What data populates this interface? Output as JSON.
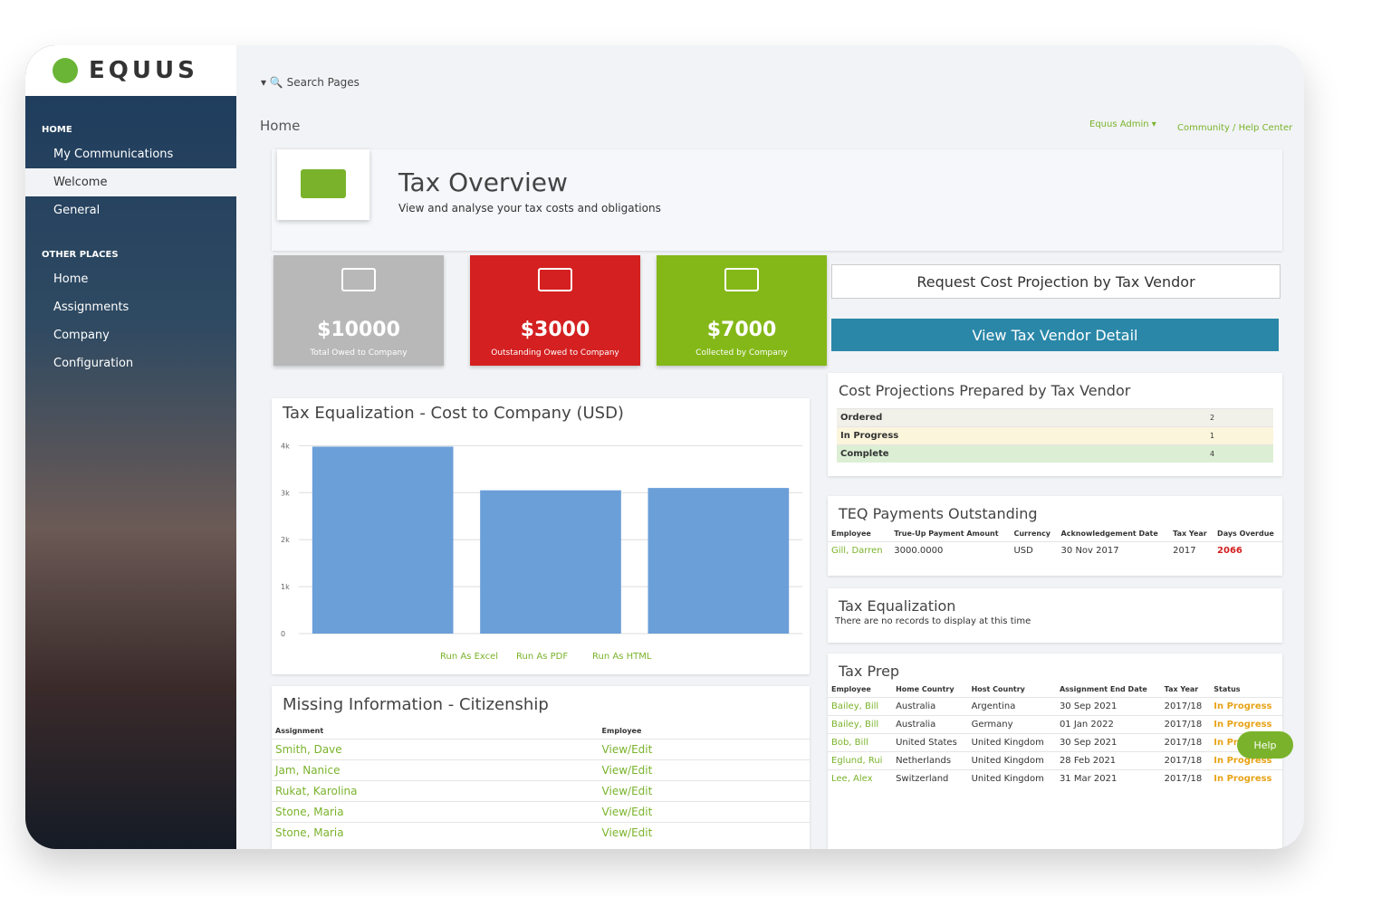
{
  "brand": "EQUUS",
  "sidebar": {
    "sections": [
      {
        "title": "HOME",
        "items": [
          "My Communications",
          "Welcome",
          "General"
        ]
      },
      {
        "title": "OTHER PLACES",
        "items": [
          "Home",
          "Assignments",
          "Company",
          "Configuration"
        ]
      }
    ]
  },
  "topbar": {
    "search": "Search Pages",
    "breadcrumb": "Home",
    "user": "Equus Admin",
    "help_center": "Community / Help Center"
  },
  "header": {
    "title": "Tax Overview",
    "subtitle": "View and analyse your tax costs and obligations"
  },
  "kpis": [
    {
      "value": "$10000",
      "label": "Total Owed to Company"
    },
    {
      "value": "$3000",
      "label": "Outstanding Owed to Company"
    },
    {
      "value": "$7000",
      "label": "Collected by Company"
    }
  ],
  "buttons": [
    "Request Cost Projection by Tax Vendor",
    "View Tax Vendor Detail"
  ],
  "chart_data": {
    "type": "bar",
    "title": "Tax Equalization - Cost to Company (USD)",
    "categories": [
      null,
      null,
      null
    ],
    "values": [
      3980,
      3050,
      3100
    ],
    "color": "#6b9fd8",
    "ylim": [
      0,
      4200
    ],
    "yticks": [
      0,
      {
        "value": 1000,
        "label": "1k"
      },
      {
        "value": 2000,
        "label": "2k"
      },
      {
        "value": 3000,
        "label": "3k"
      },
      {
        "value": 4000,
        "label": "4k"
      }
    ],
    "grid": true
  },
  "chart_actions": [
    "Run As Excel",
    "Run As PDF",
    "Run As HTML"
  ],
  "cost_projections": {
    "title": "Cost Projections Prepared by Tax Vendor",
    "rows": [
      [
        "Ordered",
        "2"
      ],
      [
        "In Progress",
        "1"
      ],
      [
        "Complete",
        "4"
      ]
    ]
  },
  "teq_payments": {
    "title": "TEQ Payments Outstanding",
    "headers": [
      "Employee",
      "True-Up Payment Amount",
      "Currency",
      "Acknowledgement Date",
      "Tax Year",
      "Days Overdue"
    ],
    "rows": [
      [
        "Gill, Darren",
        "3000.0000",
        "USD",
        "30 Nov 2017",
        "2017",
        "2066"
      ]
    ]
  },
  "tax_equalization": {
    "title": "Tax Equalization",
    "message": "There are no records to display at this time"
  },
  "tax_prep": {
    "title": "Tax Prep",
    "headers": [
      "Employee",
      "Home Country",
      "Host Country",
      "Assignment End Date",
      "Tax Year",
      "Status"
    ],
    "rows": [
      [
        "Bailey, Bill",
        "Australia",
        "Argentina",
        "30 Sep 2021",
        "2017/18",
        "In Progress"
      ],
      [
        "Bailey, Bill",
        "Australia",
        "Germany",
        "01 Jan 2022",
        "2017/18",
        "In Progress"
      ],
      [
        "Bob, Bill",
        "United States",
        "United Kingdom",
        "30 Sep 2021",
        "2017/18",
        "In Progress"
      ],
      [
        "Eglund, Rui",
        "Netherlands",
        "United Kingdom",
        "28 Feb 2021",
        "2017/18",
        "In Progress"
      ],
      [
        "Lee, Alex",
        "Switzerland",
        "United Kingdom",
        "31 Mar 2021",
        "2017/18",
        "In Progress"
      ]
    ]
  },
  "missing_info": {
    "title": "Missing Information - Citizenship",
    "headers": [
      "Assignment",
      "Employee"
    ],
    "rows": [
      [
        "Smith, Dave",
        "View/Edit"
      ],
      [
        "Jam, Nanice",
        "View/Edit"
      ],
      [
        "Rukat, Karolina",
        "View/Edit"
      ],
      [
        "Stone, Maria",
        "View/Edit"
      ],
      [
        "Stone, Maria",
        "View/Edit"
      ]
    ]
  },
  "help": "Help"
}
